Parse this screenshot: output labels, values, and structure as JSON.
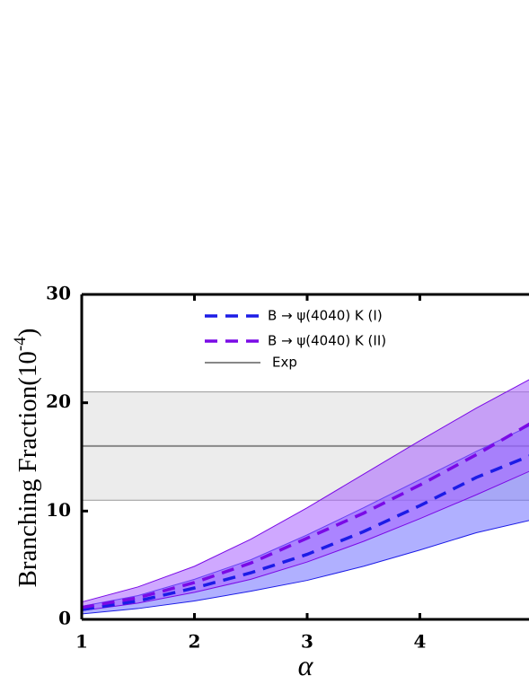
{
  "chart_data": {
    "type": "band-line",
    "ylabel_parts": [
      "Branching Fraction(10",
      "-4",
      ")"
    ],
    "xlabel": "α",
    "x": [
      1,
      1.5,
      2,
      2.5,
      3,
      3.5,
      4,
      4.5,
      5
    ],
    "series": [
      {
        "name": "B → ψ(4040) K (I)",
        "color": "#1c1ce6",
        "band_color": "#6f6fff",
        "values": [
          0.9,
          1.7,
          2.9,
          4.3,
          6.0,
          8.1,
          10.5,
          13.1,
          15.2
        ],
        "lower": [
          0.5,
          1.0,
          1.7,
          2.6,
          3.6,
          4.9,
          6.4,
          8.0,
          9.2
        ],
        "upper": [
          1.2,
          2.2,
          3.7,
          5.5,
          7.8,
          10.3,
          12.9,
          15.5,
          18.0
        ]
      },
      {
        "name": "B → ψ(4040) K (II)",
        "color": "#7a0ae6",
        "band_color": "#a860ff",
        "values": [
          1.1,
          2.0,
          3.4,
          5.2,
          7.5,
          9.8,
          12.4,
          15.2,
          18.2
        ],
        "lower": [
          0.8,
          1.5,
          2.5,
          3.7,
          5.3,
          7.2,
          9.3,
          11.5,
          13.8
        ],
        "upper": [
          1.6,
          3.0,
          4.9,
          7.4,
          10.3,
          13.4,
          16.5,
          19.5,
          22.3
        ]
      }
    ],
    "exp": {
      "name": "Exp",
      "color": "#888888",
      "value": 16,
      "lower": 11,
      "upper": 21
    },
    "xlim": [
      1,
      5
    ],
    "ylim": [
      0,
      30
    ],
    "xticks": [
      1,
      2,
      3,
      4
    ],
    "yticks": [
      0,
      10,
      20,
      30
    ]
  }
}
